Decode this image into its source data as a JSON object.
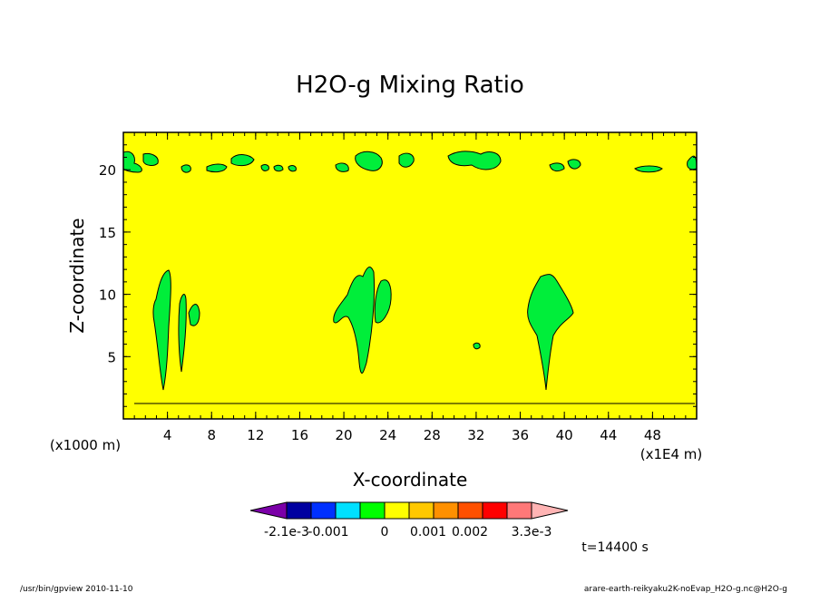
{
  "chart_data": {
    "type": "heatmap",
    "title": "H2O-g Mixing Ratio",
    "xlabel": "X-coordinate",
    "ylabel": "Z-coordinate",
    "x_unit_left": "(x1000 m)",
    "x_unit_right": "(x1E4 m)",
    "xlim": [
      0,
      52
    ],
    "ylim": [
      0,
      23
    ],
    "x_ticks": [
      4,
      8,
      12,
      16,
      20,
      24,
      28,
      32,
      36,
      40,
      44,
      48
    ],
    "y_ticks": [
      5,
      10,
      15,
      20
    ],
    "colorbar": {
      "labels": [
        "-2.1e-3",
        "-0.001",
        "0",
        "0.001",
        "0.002",
        "3.3e-3"
      ],
      "colors": [
        "#7b00a8",
        "#0000a0",
        "#0030ff",
        "#00e0ff",
        "#00ff00",
        "#ffff00",
        "#ffc800",
        "#ff9000",
        "#ff5000",
        "#ff0000",
        "#ff7878",
        "#ffb4b4"
      ]
    },
    "background_color": "#ffff00",
    "feature_color": "#00ee3a",
    "time_label": "t=14400 s"
  },
  "footer": {
    "left": "/usr/bin/gpview   2010-11-10",
    "right": "arare-earth-reikyaku2K-noEvap_H2O-g.nc@H2O-g"
  }
}
